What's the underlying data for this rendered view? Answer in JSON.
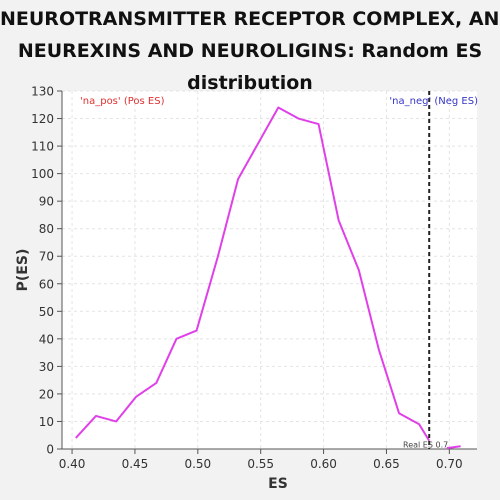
{
  "chart_data": {
    "type": "line",
    "title_lines": [
      "NEUROTRANSMITTER RECEPTOR COMPLEX, AND",
      "NEUREXINS AND NEUROLIGINS: Random ES",
      "distribution"
    ],
    "xlabel": "ES",
    "ylabel": "P(ES)",
    "xlim": [
      0.392,
      0.722
    ],
    "ylim": [
      0,
      130
    ],
    "xticks": [
      0.4,
      0.45,
      0.5,
      0.55,
      0.6,
      0.65,
      0.7
    ],
    "xtick_labels": [
      "0.40",
      "0.45",
      "0.50",
      "0.55",
      "0.60",
      "0.65",
      "0.70"
    ],
    "yticks": [
      0,
      10,
      20,
      30,
      40,
      50,
      60,
      70,
      80,
      90,
      100,
      110,
      120,
      130
    ],
    "ytick_labels": [
      "0",
      "10",
      "20",
      "30",
      "40",
      "50",
      "60",
      "70",
      "80",
      "90",
      "100",
      "110",
      "120",
      "130"
    ],
    "grid": true,
    "series": [
      {
        "color": "#e040e8",
        "x": [
          0.403,
          0.419,
          0.435,
          0.451,
          0.467,
          0.483,
          0.499,
          0.516,
          0.532,
          0.548,
          0.564,
          0.58,
          0.596,
          0.612,
          0.628,
          0.644,
          0.66,
          0.676,
          0.684
        ],
        "y": [
          4,
          12,
          10,
          19,
          24,
          40,
          43,
          70,
          98,
          111,
          124,
          120,
          118,
          83,
          65,
          36,
          13,
          9,
          3
        ]
      },
      {
        "color": "#e040e8",
        "x": [
          0.698,
          0.709
        ],
        "y": [
          0.3,
          1
        ]
      }
    ],
    "real_es": 0.684,
    "real_es_label": "Real ES 0.7",
    "annotations": {
      "pos": {
        "text": "'na_pos' (Pos ES)",
        "color": "#e03030"
      },
      "neg": {
        "text": "'na_neg' (Neg ES)",
        "color": "#3535c8"
      }
    }
  }
}
